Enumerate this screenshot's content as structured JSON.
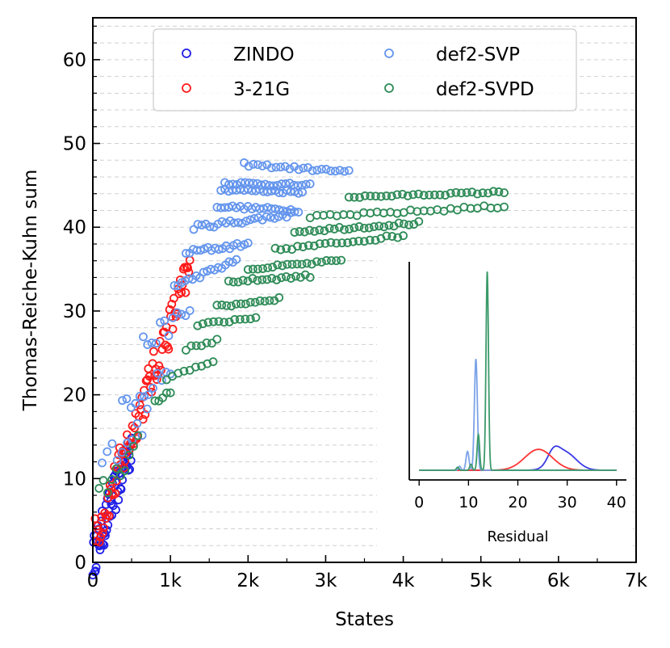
{
  "chart_data": [
    {
      "type": "scatter",
      "title": "",
      "xlabel": "States",
      "ylabel": "Thomas-Reiche-Kuhn sum",
      "xlim": [
        0,
        7000
      ],
      "ylim": [
        0,
        65
      ],
      "x_ticks": [
        0,
        1000,
        2000,
        3000,
        4000,
        5000,
        6000,
        7000
      ],
      "x_tick_labels": [
        "0",
        "1k",
        "2k",
        "3k",
        "4k",
        "5k",
        "6k",
        "7k"
      ],
      "y_ticks": [
        0,
        10,
        20,
        30,
        40,
        50,
        60
      ],
      "y_tick_labels": [
        "0",
        "10",
        "20",
        "30",
        "40",
        "50",
        "60"
      ],
      "grid": "horizontal dashed",
      "legend_position": "top",
      "series": [
        {
          "name": "ZINDO",
          "color": "#1f1fe6",
          "marker": "open-circle",
          "rows": [
            {
              "x0": 0,
              "x1": 500,
              "y0": 0.5,
              "y1": 14,
              "n": 60,
              "jitter": 2.5
            }
          ]
        },
        {
          "name": "3-21G",
          "color": "#ff1a1a",
          "marker": "open-circle",
          "rows": [
            {
              "x0": 30,
              "x1": 1250,
              "y0": 3,
              "y1": 35,
              "n": 90,
              "jitter": 2.5
            }
          ]
        },
        {
          "name": "def2-SVP",
          "color": "#6495ed",
          "marker": "open-circle",
          "rows": [
            {
              "x0": 120,
              "x1": 700,
              "y0": 12,
              "y1": 17,
              "n": 10,
              "jitter": 1.5
            },
            {
              "x0": 380,
              "x1": 1000,
              "y0": 19,
              "y1": 23,
              "n": 12,
              "jitter": 1.5
            },
            {
              "x0": 650,
              "x1": 1250,
              "y0": 26,
              "y1": 30,
              "n": 12,
              "jitter": 1.2
            },
            {
              "x0": 1050,
              "x1": 1850,
              "y0": 33,
              "y1": 36,
              "n": 18,
              "jitter": 0.3
            },
            {
              "x0": 1200,
              "x1": 2000,
              "y0": 37,
              "y1": 38,
              "n": 18,
              "jitter": 0.3
            },
            {
              "x0": 1300,
              "x1": 2550,
              "y0": 40,
              "y1": 41.5,
              "n": 25,
              "jitter": 0.3
            },
            {
              "x0": 1600,
              "x1": 2650,
              "y0": 42.5,
              "y1": 42,
              "n": 22,
              "jitter": 0.2
            },
            {
              "x0": 1650,
              "x1": 2700,
              "y0": 44.5,
              "y1": 44.2,
              "n": 22,
              "jitter": 0.2
            },
            {
              "x0": 1700,
              "x1": 2800,
              "y0": 45.3,
              "y1": 45.0,
              "n": 22,
              "jitter": 0.2
            },
            {
              "x0": 1950,
              "x1": 3300,
              "y0": 47.5,
              "y1": 46.6,
              "n": 24,
              "jitter": 0.2
            }
          ]
        },
        {
          "name": "def2-SVPD",
          "color": "#2e8b57",
          "marker": "open-circle",
          "rows": [
            {
              "x0": 80,
              "x1": 580,
              "y0": 8,
              "y1": 14,
              "n": 10,
              "jitter": 1.5
            },
            {
              "x0": 800,
              "x1": 1000,
              "y0": 19,
              "y1": 20.5,
              "n": 5,
              "jitter": 0.3
            },
            {
              "x0": 950,
              "x1": 1550,
              "y0": 22,
              "y1": 24,
              "n": 9,
              "jitter": 0.3
            },
            {
              "x0": 1200,
              "x1": 1600,
              "y0": 25.5,
              "y1": 26.5,
              "n": 7,
              "jitter": 0.2
            },
            {
              "x0": 1350,
              "x1": 2100,
              "y0": 28.3,
              "y1": 29.3,
              "n": 12,
              "jitter": 0.2
            },
            {
              "x0": 1600,
              "x1": 2400,
              "y0": 30.5,
              "y1": 31.5,
              "n": 14,
              "jitter": 0.2
            },
            {
              "x0": 1750,
              "x1": 2800,
              "y0": 33.5,
              "y1": 34.2,
              "n": 18,
              "jitter": 0.2
            },
            {
              "x0": 2000,
              "x1": 3200,
              "y0": 35,
              "y1": 36,
              "n": 20,
              "jitter": 0.2
            },
            {
              "x0": 2350,
              "x1": 4000,
              "y0": 37.3,
              "y1": 39,
              "n": 24,
              "jitter": 0.2
            },
            {
              "x0": 2600,
              "x1": 4200,
              "y0": 39.5,
              "y1": 40.5,
              "n": 26,
              "jitter": 0.2
            },
            {
              "x0": 2800,
              "x1": 5300,
              "y0": 41.2,
              "y1": 42.5,
              "n": 30,
              "jitter": 0.2
            },
            {
              "x0": 3300,
              "x1": 5300,
              "y0": 43.6,
              "y1": 44.2,
              "n": 30,
              "jitter": 0.15
            }
          ]
        }
      ]
    },
    {
      "type": "line",
      "title": "",
      "xlabel": "Residual",
      "ylabel": "",
      "xlim": [
        -2,
        42
      ],
      "x_ticks": [
        0,
        10,
        20,
        30,
        40
      ],
      "x_tick_labels": [
        "0",
        "10",
        "20",
        "30",
        "40"
      ],
      "ylim": [
        0,
        1
      ],
      "series": [
        {
          "name": "ZINDO",
          "color": "#3a3ae6",
          "peaks": [
            {
              "mu": 27.2,
              "sigma": 1.2,
              "amp": 0.06
            },
            {
              "mu": 29.5,
              "sigma": 2.3,
              "amp": 0.09
            }
          ]
        },
        {
          "name": "3-21G",
          "color": "#ff3333",
          "peaks": [
            {
              "mu": 24.2,
              "sigma": 2.8,
              "amp": 0.105
            }
          ]
        },
        {
          "name": "def2-SVP",
          "color": "#7ba3e8",
          "peaks": [
            {
              "mu": 8.2,
              "sigma": 0.25,
              "amp": 0.02
            },
            {
              "mu": 9.8,
              "sigma": 0.3,
              "amp": 0.095
            },
            {
              "mu": 11.5,
              "sigma": 0.3,
              "amp": 0.56
            }
          ]
        },
        {
          "name": "def2-SVPD",
          "color": "#3c9a6a",
          "peaks": [
            {
              "mu": 7.8,
              "sigma": 0.25,
              "amp": 0.015
            },
            {
              "mu": 10.5,
              "sigma": 0.25,
              "amp": 0.03
            },
            {
              "mu": 12.0,
              "sigma": 0.25,
              "amp": 0.18
            },
            {
              "mu": 13.8,
              "sigma": 0.25,
              "amp": 1.0
            }
          ]
        }
      ]
    }
  ]
}
